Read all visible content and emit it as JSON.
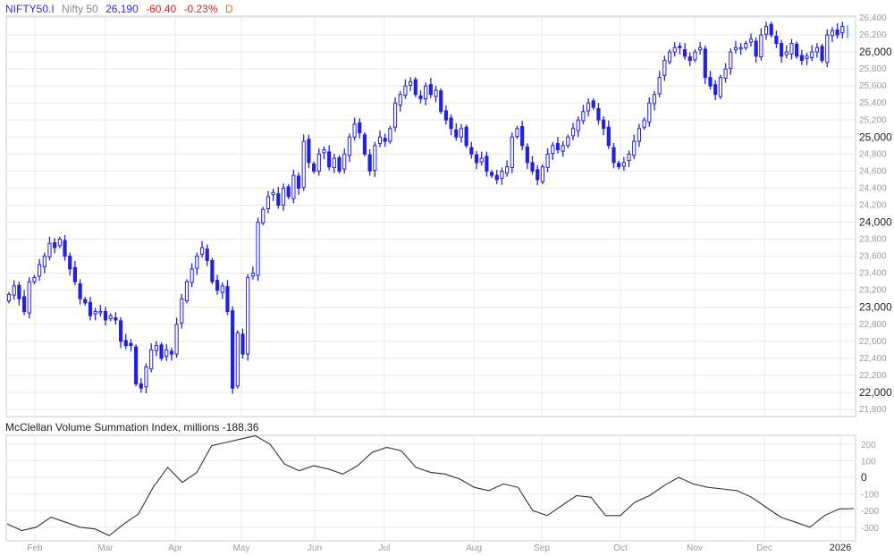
{
  "header": {
    "symbol": "NIFTY50.I",
    "name": "Nifty 50",
    "last": "26,190",
    "change": "-60.40",
    "change_pct": "-0.23%",
    "period": "D"
  },
  "indicator": {
    "title": "McClellan Volume Summation Index, millions -188.36"
  },
  "colors": {
    "candle": "#2222dd",
    "last_tick": "#1a9fd6",
    "indicator_line": "#333333",
    "grid": "#e8e8e8",
    "border": "#c8c8c8"
  },
  "chart_data": [
    {
      "type": "candlestick",
      "title": "NIFTY50.I Nifty 50",
      "ylabel": "",
      "ylim": [
        21750,
        26450
      ],
      "y_ticks": [
        "26,400",
        "26,200",
        "26,000",
        "25,800",
        "25,600",
        "25,400",
        "25,200",
        "25,000",
        "24,800",
        "24,600",
        "24,400",
        "24,200",
        "24,000",
        "23,800",
        "23,600",
        "23,400",
        "23,200",
        "23,000",
        "22,800",
        "22,600",
        "22,400",
        "22,200",
        "22,000",
        "21,800"
      ],
      "x_ticks": [
        "Feb",
        "Mar",
        "Apr",
        "May",
        "Jun",
        "Jul",
        "Aug",
        "Sep",
        "Oct",
        "Nov",
        "Dec",
        "2026"
      ],
      "grid": true,
      "ohlc_close_approx": [
        23150,
        23250,
        23100,
        22950,
        23300,
        23350,
        23500,
        23600,
        23750,
        23700,
        23800,
        23600,
        23450,
        23300,
        23100,
        23050,
        22900,
        22950,
        22950,
        22850,
        22900,
        22850,
        22600,
        22550,
        22550,
        22100,
        22050,
        22300,
        22500,
        22550,
        22400,
        22500,
        22450,
        22800,
        23100,
        23300,
        23450,
        23600,
        23700,
        23550,
        23300,
        23200,
        23250,
        22950,
        22050,
        22700,
        22450,
        23350,
        23400,
        24000,
        24150,
        24300,
        24350,
        24200,
        24400,
        24300,
        24550,
        24400,
        24950,
        24700,
        24600,
        24800,
        24850,
        24650,
        24750,
        24600,
        24800,
        25000,
        25150,
        25050,
        24800,
        24600,
        24900,
        25000,
        24950,
        25100,
        25400,
        25500,
        25600,
        25650,
        25500,
        25450,
        25600,
        25500,
        25550,
        25300,
        25200,
        25100,
        25000,
        25100,
        24900,
        24800,
        24700,
        24750,
        24600,
        24550,
        24500,
        24600,
        24650,
        25000,
        25100,
        24900,
        24700,
        24600,
        24500,
        24650,
        24800,
        24900,
        24850,
        24900,
        25000,
        25100,
        25200,
        25300,
        25400,
        25350,
        25200,
        25100,
        24900,
        24700,
        24650,
        24700,
        24800,
        24950,
        25100,
        25200,
        25400,
        25500,
        25700,
        25900,
        26000,
        26050,
        26050,
        25950,
        25900,
        26000,
        26050,
        25700,
        25600,
        25500,
        25700,
        25800,
        26000,
        26050,
        26050,
        26100,
        26150,
        25950,
        26200,
        26300,
        26200,
        26100,
        25950,
        26000,
        26100,
        25950,
        25900,
        25950,
        26000,
        26050,
        25900,
        26200,
        26250,
        26200,
        26300,
        26190
      ],
      "last_value": 26190
    },
    {
      "type": "line",
      "title": "McClellan Volume Summation Index, millions",
      "ylim": [
        -360,
        260
      ],
      "y_ticks": [
        "200",
        "100",
        "0",
        "-100",
        "-200",
        "-300"
      ],
      "last_value": -188.36,
      "x": [
        "Feb",
        "Mar",
        "Apr",
        "May",
        "Jun",
        "Jul",
        "Aug",
        "Sep",
        "Oct",
        "Nov",
        "Dec",
        "2026"
      ],
      "points_approx": [
        -280,
        -320,
        -300,
        -240,
        -270,
        -300,
        -310,
        -350,
        -280,
        -220,
        -60,
        60,
        -30,
        30,
        190,
        210,
        230,
        250,
        200,
        80,
        40,
        70,
        50,
        20,
        70,
        150,
        180,
        160,
        60,
        30,
        20,
        -10,
        -60,
        -80,
        -40,
        -60,
        -200,
        -230,
        -170,
        -110,
        -120,
        -230,
        -230,
        -150,
        -110,
        -50,
        0,
        -40,
        -60,
        -70,
        -80,
        -120,
        -180,
        -240,
        -270,
        -300,
        -230,
        -190,
        -188.36
      ]
    }
  ]
}
